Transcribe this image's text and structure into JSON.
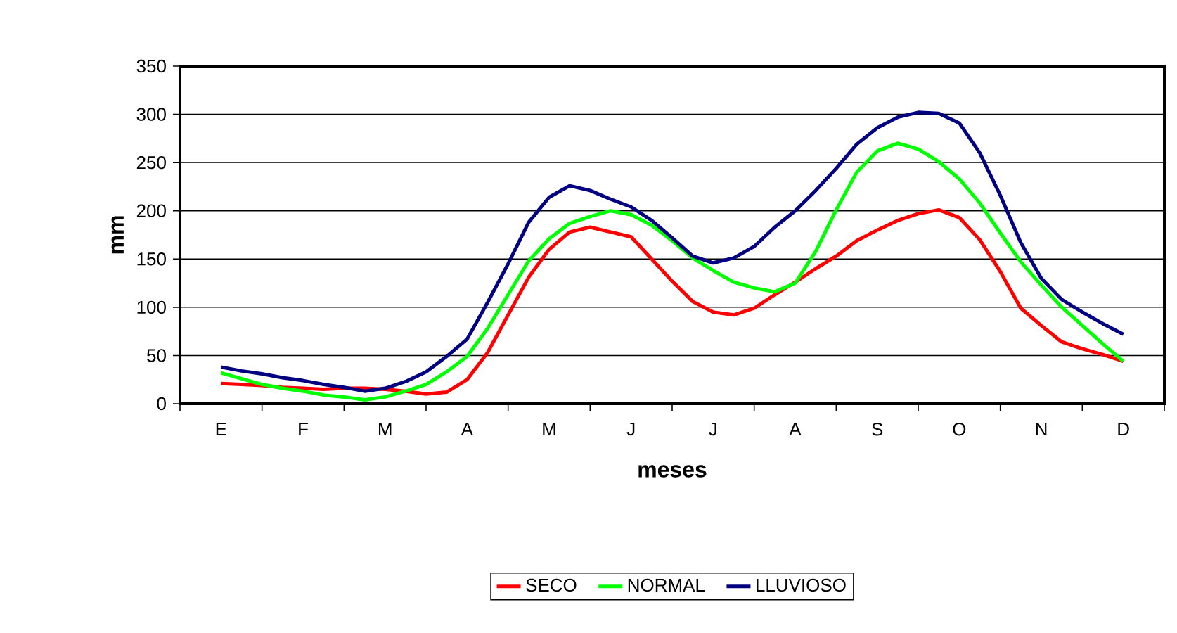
{
  "chart_data": {
    "type": "line",
    "xlabel": "meses",
    "ylabel": "mm",
    "categories": [
      "E",
      null,
      null,
      null,
      "F",
      null,
      null,
      null,
      "M",
      null,
      null,
      null,
      "A",
      null,
      null,
      null,
      "M",
      null,
      null,
      null,
      "J",
      null,
      null,
      null,
      "J",
      null,
      null,
      null,
      "A",
      null,
      null,
      null,
      "S",
      null,
      null,
      null,
      "O",
      null,
      null,
      null,
      "N",
      null,
      null,
      null,
      "D"
    ],
    "ylim": [
      0,
      350
    ],
    "yticks": [
      0,
      50,
      100,
      150,
      200,
      250,
      300,
      350
    ],
    "grid": "y",
    "legend": "bottom",
    "marker": "none",
    "line_style": "solid",
    "series": [
      {
        "name": "SECO",
        "color": "#ff0000",
        "values": [
          21,
          20,
          19,
          17,
          16,
          15,
          16,
          16,
          15,
          13,
          10,
          12,
          25,
          53,
          92,
          131,
          160,
          178,
          183,
          178,
          173,
          150,
          127,
          106,
          95,
          92,
          99,
          113,
          126,
          140,
          153,
          169,
          180,
          190,
          197,
          201,
          193,
          170,
          137,
          99,
          81,
          64,
          57,
          51,
          44
        ]
      },
      {
        "name": "NORMAL",
        "color": "#00ff00",
        "values": [
          32,
          26,
          20,
          16,
          13,
          9,
          7,
          4,
          7,
          13,
          20,
          33,
          49,
          78,
          113,
          148,
          171,
          187,
          194,
          200,
          196,
          185,
          169,
          151,
          138,
          126,
          120,
          116,
          125,
          158,
          201,
          240,
          262,
          270,
          264,
          251,
          233,
          208,
          177,
          147,
          123,
          100,
          81,
          62,
          44
        ]
      },
      {
        "name": "LLUVIOSO",
        "color": "#000080",
        "values": [
          38,
          34,
          31,
          27,
          24,
          20,
          17,
          13,
          16,
          23,
          33,
          49,
          67,
          105,
          145,
          188,
          214,
          226,
          221,
          212,
          204,
          190,
          172,
          153,
          146,
          151,
          163,
          183,
          200,
          221,
          244,
          269,
          286,
          297,
          302,
          301,
          291,
          260,
          216,
          167,
          130,
          108,
          95,
          83,
          72
        ]
      }
    ]
  }
}
